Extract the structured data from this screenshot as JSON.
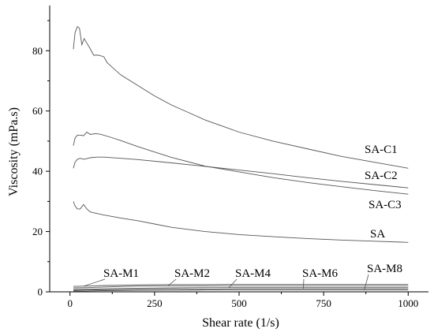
{
  "chart_data": {
    "type": "line",
    "xlabel": "Shear rate (1/s)",
    "ylabel": "Viscosity (mPa.s)",
    "xlim": [
      -60,
      1060
    ],
    "ylim": [
      0,
      95
    ],
    "xticks": [
      0,
      250,
      500,
      750,
      1000
    ],
    "yticks": [
      0,
      20,
      40,
      60,
      80
    ],
    "grid": false,
    "series": [
      {
        "name": "SA-C1",
        "color": "#555555",
        "x": [
          10,
          15,
          22,
          28,
          35,
          42,
          50,
          58,
          70,
          85,
          100,
          110,
          125,
          150,
          200,
          250,
          300,
          350,
          400,
          450,
          500,
          600,
          700,
          800,
          900,
          1000
        ],
        "y": [
          80.5,
          86,
          88,
          87.5,
          82,
          84,
          82.5,
          81,
          78.5,
          78.5,
          78,
          76,
          74.5,
          72,
          68.5,
          65,
          62,
          59.5,
          57,
          55,
          53,
          50,
          47.5,
          45,
          43,
          41
        ]
      },
      {
        "name": "SA-C2",
        "color": "#555555",
        "x": [
          10,
          15,
          22,
          30,
          40,
          50,
          60,
          80,
          100,
          150,
          200,
          300,
          400,
          500,
          600,
          700,
          800,
          900,
          1000
        ],
        "y": [
          41,
          43,
          44,
          44.3,
          44,
          44.2,
          44.5,
          44.7,
          44.7,
          44.3,
          43.9,
          42.8,
          41.6,
          40.4,
          39.2,
          37.9,
          36.7,
          35.6,
          34.5
        ]
      },
      {
        "name": "SA-C3",
        "color": "#555555",
        "x": [
          10,
          15,
          22,
          30,
          40,
          50,
          60,
          75,
          90,
          120,
          150,
          200,
          300,
          400,
          500,
          600,
          700,
          800,
          900,
          1000
        ],
        "y": [
          48.5,
          51,
          52,
          52,
          51.8,
          53,
          52.2,
          52.5,
          52.3,
          51.3,
          50.2,
          48.2,
          44.6,
          41.7,
          39.8,
          37.9,
          36.3,
          34.9,
          33.6,
          32.4
        ]
      },
      {
        "name": "SA",
        "color": "#555555",
        "x": [
          10,
          15,
          22,
          30,
          40,
          50,
          60,
          80,
          100,
          150,
          200,
          250,
          300,
          400,
          500,
          600,
          700,
          800,
          900,
          1000
        ],
        "y": [
          30,
          28.5,
          27.5,
          27.5,
          29,
          27.5,
          26.5,
          26,
          25.5,
          24.5,
          23.6,
          22.5,
          21.4,
          20,
          19,
          18.3,
          17.7,
          17.2,
          16.8,
          16.4
        ]
      },
      {
        "name": "SA-M1",
        "color": "#555555",
        "x": [
          10,
          50,
          100,
          200,
          300,
          400,
          500,
          600,
          700,
          800,
          900,
          1000
        ],
        "y": [
          1.8,
          1.9,
          2.1,
          2.3,
          2.4,
          2.4,
          2.5,
          2.5,
          2.5,
          2.5,
          2.5,
          2.5
        ]
      },
      {
        "name": "SA-M2",
        "color": "#555555",
        "x": [
          10,
          50,
          100,
          200,
          300,
          400,
          500,
          600,
          700,
          800,
          900,
          1000
        ],
        "y": [
          1.3,
          1.4,
          1.6,
          1.9,
          2.0,
          2.0,
          2.0,
          2.0,
          2.0,
          2.0,
          2.0,
          2.0
        ]
      },
      {
        "name": "SA-M4",
        "color": "#555555",
        "x": [
          10,
          50,
          100,
          200,
          300,
          400,
          500,
          600,
          700,
          800,
          900,
          1000
        ],
        "y": [
          0.8,
          0.9,
          1.0,
          1.2,
          1.3,
          1.4,
          1.4,
          1.4,
          1.4,
          1.4,
          1.4,
          1.4
        ]
      },
      {
        "name": "SA-M6",
        "color": "#555555",
        "x": [
          10,
          50,
          100,
          200,
          300,
          400,
          500,
          600,
          700,
          800,
          900,
          1000
        ],
        "y": [
          0.5,
          0.6,
          0.7,
          0.8,
          0.9,
          0.9,
          1.0,
          1.0,
          1.0,
          1.0,
          1.0,
          1.0
        ]
      },
      {
        "name": "SA-M8",
        "color": "#555555",
        "x": [
          10,
          50,
          100,
          200,
          300,
          400,
          500,
          600,
          700,
          800,
          900,
          1000
        ],
        "y": [
          0.3,
          0.3,
          0.4,
          0.5,
          0.5,
          0.6,
          0.6,
          0.6,
          0.6,
          0.6,
          0.6,
          0.6
        ]
      }
    ],
    "annotations": [
      {
        "text": "SA-C1",
        "series": "SA-C1"
      },
      {
        "text": "SA-C2",
        "series": "SA-C2"
      },
      {
        "text": "SA-C3",
        "series": "SA-C3"
      },
      {
        "text": "SA",
        "series": "SA"
      },
      {
        "text": "SA-M1",
        "series": "SA-M1",
        "pointer_x": 40
      },
      {
        "text": "SA-M2",
        "series": "SA-M2",
        "pointer_x": 290
      },
      {
        "text": "SA-M4",
        "series": "SA-M4",
        "pointer_x": 470
      },
      {
        "text": "SA-M6",
        "series": "SA-M6",
        "pointer_x": 690
      },
      {
        "text": "SA-M8",
        "series": "SA-M8",
        "pointer_x": 870
      }
    ]
  }
}
